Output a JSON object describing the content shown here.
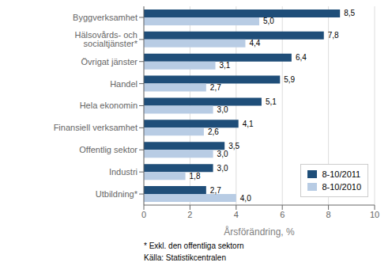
{
  "chart_data": {
    "type": "bar",
    "orientation": "horizontal",
    "categories": [
      "Utbildning*",
      "Industri",
      "Offentlig sektor",
      "Finansiell verksamhet",
      "Hela ekonomin",
      "Handel",
      "Övrigat jänster",
      "Hälsovårds- och socialtjänster*",
      "Byggverksamhet"
    ],
    "series": [
      {
        "name": "8-10/2011",
        "color": "#1f4e79",
        "values": [
          2.7,
          3.0,
          3.5,
          4.1,
          5.1,
          5.9,
          6.4,
          7.8,
          8.5
        ],
        "value_labels": [
          "2,7",
          "3,0",
          "3,5",
          "4,1",
          "5,1",
          "5,9",
          "6,4",
          "7,8",
          "8,5"
        ]
      },
      {
        "name": "8-10/2010",
        "color": "#b8cce4",
        "values": [
          4.0,
          1.8,
          3.0,
          2.6,
          3.0,
          2.7,
          3.1,
          4.4,
          5.0
        ],
        "value_labels": [
          "4,0",
          "1,8",
          "3,0",
          "2,6",
          "3,0",
          "2,7",
          "3,1",
          "4,4",
          "5,0"
        ]
      }
    ],
    "xlabel": "Årsförändring, %",
    "xlim": [
      0,
      10
    ],
    "xticks": [
      0,
      2,
      4,
      6,
      8,
      10
    ],
    "grid": true,
    "legend": "lower right",
    "data_labels": true,
    "annotations": [
      "* Exkl. den offentliga sektorn",
      "Källa: Statistikcentralen"
    ]
  }
}
